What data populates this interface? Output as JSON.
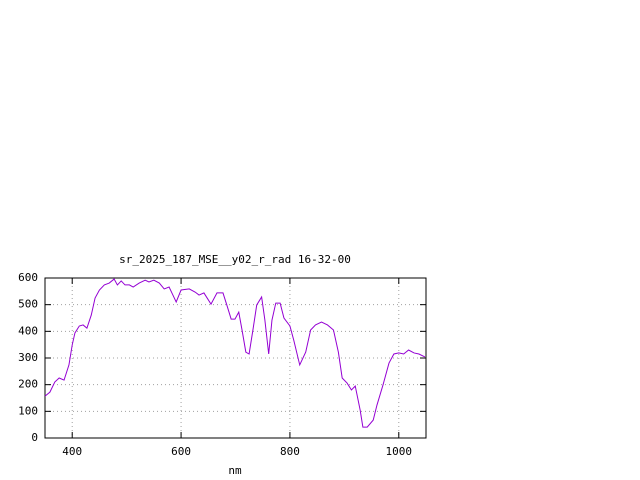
{
  "chart_data": {
    "type": "line",
    "title": "sr_2025_187_MSE__y02_r_rad 16-32-00",
    "x_label": "nm",
    "xlim": [
      350,
      1050
    ],
    "xticks": [
      400,
      600,
      800,
      1000
    ],
    "ylim": [
      0,
      600
    ],
    "yticks": [
      0,
      100,
      200,
      300,
      400,
      500,
      600
    ],
    "grid": true,
    "series": [
      {
        "color": "#9400d3",
        "x": [
          350,
          359,
          368,
          376,
          385,
          394,
          400,
          405,
          413,
          420,
          427,
          435,
          442,
          450,
          459,
          468,
          477,
          483,
          490,
          497,
          505,
          512,
          523,
          534,
          541,
          550,
          560,
          569,
          578,
          585,
          591,
          600,
          615,
          626,
          633,
          642,
          655,
          666,
          677,
          684,
          692,
          699,
          706,
          712,
          719,
          725,
          732,
          739,
          748,
          754,
          761,
          767,
          774,
          782,
          789,
          800,
          807,
          818,
          829,
          838,
          847,
          858,
          869,
          880,
          889,
          896,
          905,
          913,
          920,
          929,
          934,
          942,
          953,
          960,
          971,
          982,
          991,
          1000,
          1009,
          1018,
          1028,
          1037,
          1048
        ],
        "values": [
          157,
          172,
          210,
          225,
          217,
          274,
          349,
          394,
          420,
          424,
          412,
          461,
          525,
          555,
          574,
          581,
          596,
          574,
          589,
          574,
          574,
          566,
          581,
          592,
          585,
          592,
          581,
          559,
          566,
          536,
          510,
          555,
          559,
          547,
          536,
          544,
          502,
          544,
          544,
          499,
          446,
          446,
          472,
          405,
          322,
          315,
          405,
          499,
          529,
          442,
          315,
          442,
          506,
          506,
          450,
          420,
          367,
          274,
          322,
          405,
          424,
          435,
          424,
          405,
          322,
          225,
          206,
          180,
          195,
          105,
          41,
          41,
          67,
          124,
          199,
          281,
          315,
          319,
          315,
          330,
          319,
          315,
          304
        ]
      }
    ]
  }
}
